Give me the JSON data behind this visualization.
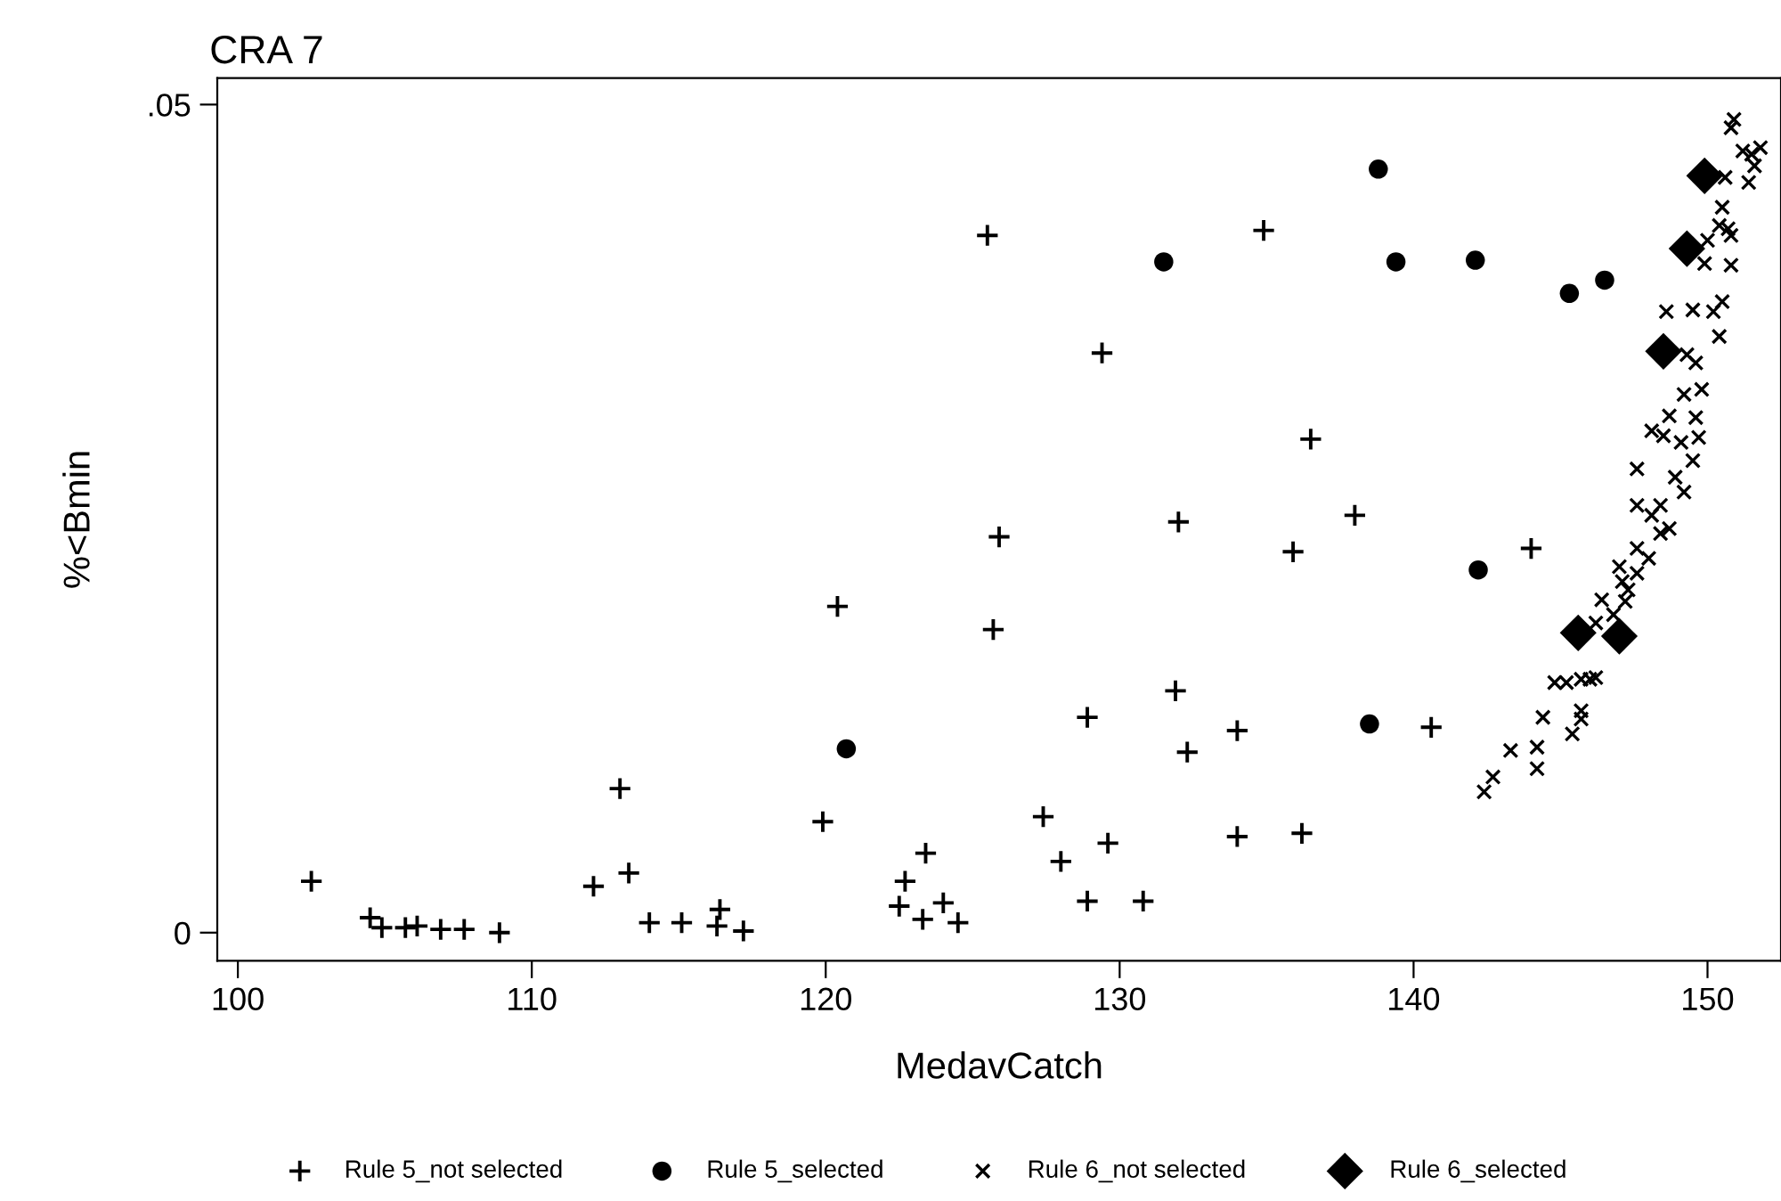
{
  "chart_data": {
    "type": "scatter",
    "title": "CRA 7",
    "xlabel": "MedavCatch",
    "ylabel": "%<Bmin",
    "xlim": [
      99.3,
      152.5
    ],
    "ylim": [
      -0.0017,
      0.0516
    ],
    "xticks": [
      100,
      110,
      120,
      130,
      140,
      150
    ],
    "yticks": [
      {
        "value": 0,
        "label": "0"
      },
      {
        "value": 0.05,
        "label": ".05"
      }
    ],
    "grid": false,
    "legend": "bottom",
    "series": [
      {
        "name": "Rule 5_not selected",
        "color": "#000000",
        "marker": "cross",
        "x": [
          102.5,
          104.5,
          104.9,
          105.7,
          106.1,
          106.9,
          107.7,
          108.9,
          112.1,
          113.0,
          113.3,
          114.0,
          115.1,
          116.3,
          116.4,
          117.2,
          119.9,
          120.4,
          125.5,
          125.9,
          125.7,
          134.9,
          129.4,
          136.5,
          132.0,
          138.0,
          135.9,
          131.9,
          128.9,
          134.0,
          132.3,
          127.4,
          134.0,
          136.2,
          129.6,
          123.4,
          128.0,
          122.7,
          122.5,
          124.0,
          123.3,
          124.5,
          128.9,
          130.8,
          140.6,
          144.0
        ],
        "values": [
          0.0031,
          0.0009,
          0.0003,
          0.0003,
          0.0004,
          0.0002,
          0.0002,
          0.0,
          0.0028,
          0.0087,
          0.0036,
          0.0006,
          0.0006,
          0.0004,
          0.0014,
          0.0001,
          0.0067,
          0.0197,
          0.0421,
          0.0239,
          0.0183,
          0.0424,
          0.035,
          0.0298,
          0.0248,
          0.0252,
          0.023,
          0.0146,
          0.013,
          0.0122,
          0.0109,
          0.007,
          0.0058,
          0.006,
          0.0054,
          0.0048,
          0.0043,
          0.0031,
          0.0016,
          0.0018,
          0.0008,
          0.0006,
          0.0019,
          0.0019,
          0.0124,
          0.0232
        ]
      },
      {
        "name": "Rule 5_selected",
        "color": "#000000",
        "marker": "circle",
        "x": [
          131.5,
          138.8,
          139.4,
          120.7,
          138.5,
          142.1,
          145.3,
          146.5,
          142.2
        ],
        "values": [
          0.0405,
          0.0461,
          0.0405,
          0.0111,
          0.0126,
          0.0406,
          0.0386,
          0.0394,
          0.0219
        ]
      },
      {
        "name": "Rule 6_not selected",
        "color": "#000000",
        "marker": "x",
        "x": [
          150.9,
          150.8,
          151.2,
          151.5,
          151.8,
          151.6,
          150.6,
          151.4,
          150.5,
          150.0,
          150.4,
          150.7,
          150.8,
          149.9,
          150.8,
          148.6,
          149.5,
          150.2,
          150.5,
          150.4,
          149.3,
          149.6,
          149.8,
          149.2,
          148.7,
          149.6,
          148.1,
          148.5,
          149.1,
          149.7,
          149.5,
          147.6,
          148.9,
          149.2,
          147.6,
          148.1,
          148.4,
          148.7,
          148.4,
          147.6,
          148.0,
          147.0,
          147.6,
          147.1,
          147.3,
          147.2,
          146.4,
          146.8,
          146.2,
          144.8,
          145.2,
          145.7,
          146.0,
          146.2,
          144.4,
          145.7,
          145.7,
          145.4,
          143.3,
          144.2,
          144.2,
          142.7,
          142.4
        ],
        "values": [
          0.0491,
          0.0486,
          0.0472,
          0.047,
          0.0474,
          0.0463,
          0.0456,
          0.0453,
          0.0438,
          0.0418,
          0.0427,
          0.0425,
          0.0421,
          0.0404,
          0.0403,
          0.0375,
          0.0376,
          0.0375,
          0.0381,
          0.036,
          0.0349,
          0.0344,
          0.0328,
          0.0325,
          0.0312,
          0.0311,
          0.0303,
          0.03,
          0.0296,
          0.0299,
          0.0285,
          0.028,
          0.0275,
          0.0266,
          0.0258,
          0.0252,
          0.0258,
          0.0244,
          0.0241,
          0.0232,
          0.0226,
          0.0221,
          0.0217,
          0.0212,
          0.0207,
          0.02,
          0.0201,
          0.0192,
          0.0187,
          0.0151,
          0.0151,
          0.0153,
          0.0153,
          0.0154,
          0.013,
          0.0134,
          0.0129,
          0.012,
          0.011,
          0.0112,
          0.0099,
          0.0094,
          0.0085
        ]
      },
      {
        "name": "Rule 6_selected",
        "color": "#000000",
        "marker": "diamond",
        "x": [
          149.9,
          149.3,
          148.5,
          145.6,
          147.0
        ],
        "values": [
          0.0457,
          0.0413,
          0.0351,
          0.0181,
          0.0179
        ]
      }
    ]
  }
}
